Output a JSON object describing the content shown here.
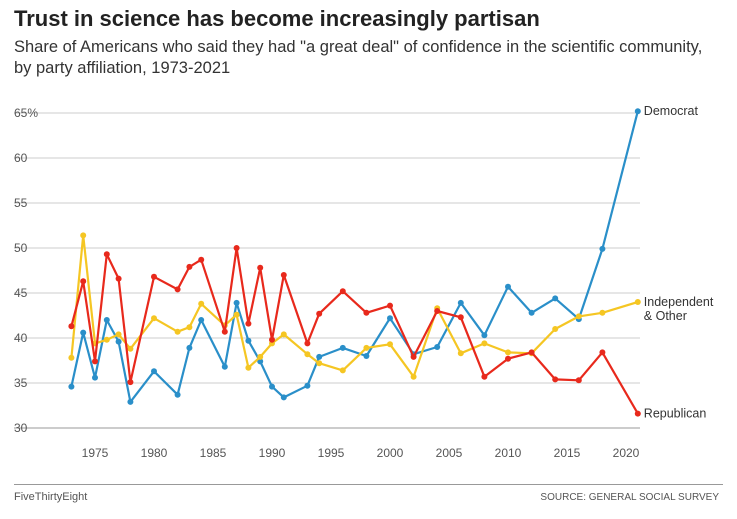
{
  "chart_data": {
    "type": "line",
    "title": "Trust in science has become increasingly partisan",
    "subtitle": "Share of Americans who said they had \"a great deal\" of confidence in the scientific community, by party affiliation, 1973-2021",
    "xlabel": "",
    "ylabel": "",
    "ylim": [
      30,
      65
    ],
    "y_ticks": [
      "30",
      "35",
      "40",
      "45",
      "50",
      "55",
      "60",
      "65%"
    ],
    "x_ticks": [
      "1975",
      "1980",
      "1985",
      "1990",
      "1995",
      "2000",
      "2005",
      "2010",
      "2015",
      "2020"
    ],
    "x": [
      1973,
      1974,
      1975,
      1976,
      1977,
      1978,
      1980,
      1982,
      1983,
      1984,
      1986,
      1987,
      1988,
      1989,
      1990,
      1991,
      1993,
      1994,
      1996,
      1998,
      2000,
      2002,
      2004,
      2006,
      2008,
      2010,
      2012,
      2014,
      2016,
      2018,
      2021
    ],
    "series": [
      {
        "name": "Democrat",
        "color": "#2a8fc9",
        "values": [
          34.6,
          40.6,
          35.6,
          42.0,
          39.6,
          32.9,
          36.3,
          33.7,
          38.9,
          42.0,
          36.8,
          43.9,
          39.7,
          37.4,
          34.6,
          33.4,
          34.7,
          37.9,
          38.9,
          38.0,
          42.2,
          38.2,
          39.0,
          43.9,
          40.3,
          45.7,
          42.8,
          44.4,
          42.1,
          49.9,
          65.2
        ]
      },
      {
        "name": "Independent & Other",
        "color": "#f5c623",
        "values": [
          37.8,
          51.4,
          39.4,
          39.8,
          40.4,
          38.8,
          42.2,
          40.7,
          41.2,
          43.8,
          41.4,
          42.6,
          36.7,
          37.9,
          39.4,
          40.4,
          38.2,
          37.2,
          36.4,
          38.9,
          39.3,
          35.7,
          43.3,
          38.3,
          39.4,
          38.4,
          38.3,
          41.0,
          42.4,
          42.8,
          44.0
        ]
      },
      {
        "name": "Republican",
        "color": "#e8291c",
        "values": [
          41.3,
          46.3,
          37.4,
          49.3,
          46.6,
          35.1,
          46.8,
          45.4,
          47.9,
          48.7,
          40.7,
          50.0,
          41.6,
          47.8,
          39.8,
          47.0,
          39.4,
          42.7,
          45.2,
          42.8,
          43.6,
          37.9,
          43.0,
          42.3,
          35.7,
          37.7,
          38.4,
          35.4,
          35.3,
          38.4,
          31.6
        ]
      }
    ],
    "series_labels": [
      [
        "Democrat"
      ],
      [
        "Independent",
        "& Other"
      ],
      [
        "Republican"
      ]
    ],
    "grid": true
  },
  "footer": {
    "brand": "FiveThirtyEight",
    "source": "SOURCE: GENERAL SOCIAL SURVEY"
  }
}
